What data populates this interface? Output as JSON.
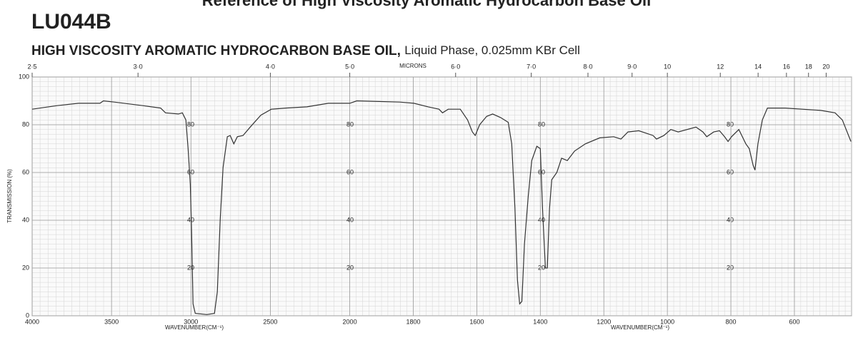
{
  "chart_data": {
    "type": "line",
    "title": "Reference of High Viscosity Aromatic Hydrocarbon Base Oil",
    "code": "LU044B",
    "subtitle_bold": "HIGH VISCOSITY AROMATIC HYDROCARBON BASE OIL,",
    "subtitle": "Liquid Phase, 0.025mm KBr Cell",
    "xlabel": "WAVENUMBER(CM⁻¹)",
    "ylabel": "TRANSMISSION (%)",
    "x2label": "MICRONS",
    "xlim": [
      4000,
      420
    ],
    "xscale_change": 2000,
    "ylim": [
      0,
      100
    ],
    "xticks": [
      4000,
      3500,
      3000,
      2500,
      2000,
      1800,
      1600,
      1400,
      1200,
      1000,
      800,
      600
    ],
    "yticks": [
      0,
      20,
      40,
      60,
      80,
      100
    ],
    "x2ticks": [
      {
        "value": 2.5,
        "label": "2·5"
      },
      {
        "value": 3,
        "label": "3·0"
      },
      {
        "value": 4,
        "label": "4·0"
      },
      {
        "value": 5,
        "label": "5·0"
      },
      {
        "value": 6,
        "label": "6·0"
      },
      {
        "value": 7,
        "label": "7·0"
      },
      {
        "value": 8,
        "label": "8·0"
      },
      {
        "value": 9,
        "label": "9·0"
      },
      10,
      12,
      14,
      16,
      18,
      20
    ],
    "grid": true,
    "series": [
      {
        "name": "LU044B",
        "color": "#333333",
        "x": [
          4000,
          3843,
          3708,
          3573,
          3551,
          3483,
          3303,
          3191,
          3160,
          3079,
          3054,
          3032,
          3018,
          3004,
          2996,
          2987,
          2973,
          2900,
          2852,
          2834,
          2816,
          2798,
          2771,
          2753,
          2730,
          2708,
          2672,
          2627,
          2560,
          2494,
          2404,
          2270,
          2135,
          2000,
          1978,
          1843,
          1798,
          1753,
          1719,
          1708,
          1690,
          1652,
          1629,
          1614,
          1605,
          1591,
          1569,
          1550,
          1525,
          1501,
          1490,
          1480,
          1472,
          1465,
          1458,
          1450,
          1438,
          1427,
          1411,
          1400,
          1393,
          1384,
          1378,
          1371,
          1364,
          1348,
          1333,
          1315,
          1292,
          1258,
          1213,
          1169,
          1146,
          1124,
          1090,
          1045,
          1034,
          1011,
          989,
          966,
          910,
          888,
          876,
          854,
          836,
          820,
          809,
          798,
          775,
          764,
          753,
          742,
          730,
          724,
          715,
          701,
          685,
          629,
          517,
          472,
          449,
          422
        ],
        "values": [
          86.5,
          88,
          89,
          89,
          90,
          89.5,
          88,
          87,
          85,
          84.5,
          85,
          82,
          70,
          55,
          35,
          5,
          1,
          0.5,
          1,
          10,
          40,
          62,
          75,
          75.5,
          72,
          75,
          75.5,
          79,
          84,
          86.5,
          87,
          87.5,
          89,
          89,
          90,
          89.5,
          89,
          87.5,
          86.5,
          85,
          86.5,
          86.5,
          82,
          77,
          75.5,
          80,
          83.5,
          84.5,
          83,
          81,
          72,
          45,
          15,
          5,
          6,
          30,
          50,
          65,
          71,
          70,
          45,
          20,
          20,
          45,
          57,
          60,
          66,
          65,
          69,
          72,
          74.5,
          75,
          74,
          77,
          77.5,
          75.5,
          74,
          75.5,
          78,
          77,
          79,
          77,
          75,
          77,
          77.5,
          75,
          73,
          75,
          78,
          75,
          72,
          70,
          63,
          61,
          72,
          82,
          87,
          87,
          86,
          85,
          82,
          73
        ]
      }
    ]
  }
}
